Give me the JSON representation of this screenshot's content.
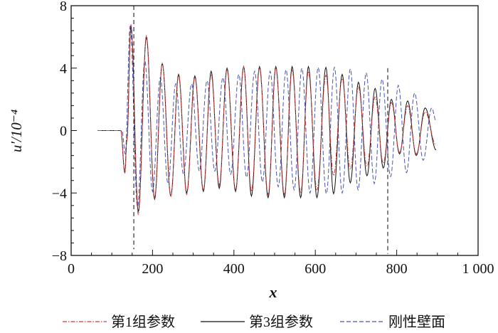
{
  "chart_data": {
    "type": "line",
    "xlabel": "x",
    "ylabel": "u′/10⁻⁴",
    "xlim": [
      0,
      1000
    ],
    "ylim": [
      -8,
      8
    ],
    "xticks": [
      0,
      200,
      400,
      600,
      800,
      1000
    ],
    "xtick_labels": [
      "0",
      "200",
      "400",
      "600",
      "800",
      "1 000"
    ],
    "yticks": [
      8,
      4,
      0,
      -4,
      -8
    ],
    "ytick_labels": [
      "8",
      "4",
      "0",
      "−4",
      "−8"
    ],
    "grid": false,
    "legend_position": "bottom",
    "vertical_markers": [
      {
        "x": 154,
        "y_from": -7.6,
        "y_to": 8
      },
      {
        "x": 778,
        "y_from": -7.9,
        "y_to": 4.0
      }
    ],
    "series": [
      {
        "name": "第1组参数",
        "color": "#d03a3a",
        "style": "dash-dot",
        "extrema": [
          [
            65,
            0
          ],
          [
            122,
            0
          ],
          [
            132,
            -2.7
          ],
          [
            137,
            -0.6
          ],
          [
            147,
            6.8
          ],
          [
            165,
            -5.4
          ],
          [
            185,
            6.1
          ],
          [
            205,
            -4.3
          ],
          [
            224,
            4.3
          ],
          [
            245,
            -4.2
          ],
          [
            264,
            3.5
          ],
          [
            284,
            -4.1
          ],
          [
            304,
            3.4
          ],
          [
            325,
            -3.8
          ],
          [
            344,
            3.6
          ],
          [
            364,
            -3.5
          ],
          [
            383,
            3.9
          ],
          [
            404,
            -3.8
          ],
          [
            424,
            4.1
          ],
          [
            443,
            -3.9
          ],
          [
            463,
            4.0
          ],
          [
            484,
            -4.1
          ],
          [
            503,
            4.0
          ],
          [
            524,
            -4.1
          ],
          [
            543,
            3.9
          ],
          [
            564,
            -4.0
          ],
          [
            583,
            3.8
          ],
          [
            604,
            -3.8
          ],
          [
            626,
            3.55
          ],
          [
            645,
            -2.9
          ],
          [
            666,
            3.35
          ],
          [
            686,
            -2.5
          ],
          [
            706,
            2.8
          ],
          [
            727,
            -2.3
          ],
          [
            747,
            2.15
          ],
          [
            767,
            -2.1
          ],
          [
            787,
            1.8
          ],
          [
            807,
            -1.4
          ],
          [
            827,
            1.6
          ],
          [
            848,
            -1.5
          ],
          [
            870,
            1.2
          ],
          [
            897,
            -0.95
          ]
        ]
      },
      {
        "name": "第3组参数",
        "color": "#111111",
        "style": "solid",
        "extrema": [
          [
            65,
            0
          ],
          [
            122,
            0
          ],
          [
            132,
            -2.7
          ],
          [
            137,
            -0.6
          ],
          [
            147,
            6.7
          ],
          [
            165,
            -5.2
          ],
          [
            185,
            6.0
          ],
          [
            205,
            -4.4
          ],
          [
            224,
            4.3
          ],
          [
            245,
            -4.2
          ],
          [
            264,
            3.6
          ],
          [
            284,
            -4.0
          ],
          [
            304,
            3.5
          ],
          [
            325,
            -3.9
          ],
          [
            344,
            3.8
          ],
          [
            364,
            -3.7
          ],
          [
            383,
            4.0
          ],
          [
            404,
            -3.9
          ],
          [
            424,
            4.1
          ],
          [
            443,
            -4.2
          ],
          [
            463,
            4.1
          ],
          [
            484,
            -4.3
          ],
          [
            503,
            4.1
          ],
          [
            524,
            -4.3
          ],
          [
            543,
            4.1
          ],
          [
            564,
            -4.3
          ],
          [
            583,
            4.1
          ],
          [
            604,
            -4.3
          ],
          [
            626,
            4.05
          ],
          [
            645,
            -4.05
          ],
          [
            666,
            3.6
          ],
          [
            686,
            -3.35
          ],
          [
            706,
            3.1
          ],
          [
            727,
            -2.9
          ],
          [
            747,
            2.7
          ],
          [
            767,
            -2.4
          ],
          [
            787,
            2.0
          ],
          [
            807,
            -1.5
          ],
          [
            827,
            1.9
          ],
          [
            848,
            -1.6
          ],
          [
            870,
            1.45
          ],
          [
            897,
            -1.25
          ]
        ]
      },
      {
        "name": "刚性壁面",
        "color": "#4a55b0",
        "style": "dashed",
        "extrema": [
          [
            65,
            0
          ],
          [
            125,
            0
          ],
          [
            133,
            -1.5
          ],
          [
            145,
            6.7
          ],
          [
            163,
            -4.9
          ],
          [
            181,
            4.5
          ],
          [
            200,
            -3.9
          ],
          [
            219,
            3.4
          ],
          [
            238,
            -3.4
          ],
          [
            257,
            3.0
          ],
          [
            276,
            -2.8
          ],
          [
            296,
            3.0
          ],
          [
            315,
            -2.6
          ],
          [
            334,
            3.2
          ],
          [
            353,
            -2.6
          ],
          [
            373,
            3.4
          ],
          [
            392,
            -2.8
          ],
          [
            412,
            3.6
          ],
          [
            431,
            -3.0
          ],
          [
            451,
            3.8
          ],
          [
            470,
            -3.3
          ],
          [
            489,
            3.8
          ],
          [
            509,
            -3.6
          ],
          [
            528,
            3.9
          ],
          [
            548,
            -3.8
          ],
          [
            567,
            4.0
          ],
          [
            587,
            -4.0
          ],
          [
            607,
            4.05
          ],
          [
            627,
            -4.05
          ],
          [
            647,
            4.05
          ],
          [
            666,
            -4.0
          ],
          [
            686,
            3.95
          ],
          [
            705,
            -3.8
          ],
          [
            725,
            3.7
          ],
          [
            745,
            -3.4
          ],
          [
            764,
            3.3
          ],
          [
            785,
            -2.95
          ],
          [
            804,
            2.9
          ],
          [
            824,
            -2.7
          ],
          [
            844,
            2.4
          ],
          [
            865,
            -1.9
          ],
          [
            886,
            1.45
          ],
          [
            897,
            0.6
          ]
        ]
      }
    ]
  }
}
